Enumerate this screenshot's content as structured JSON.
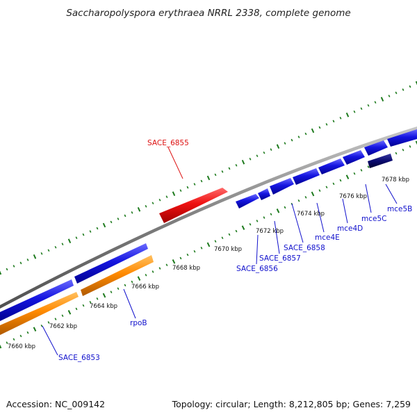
{
  "title": "Saccharopolyspora erythraea NRRL 2338, complete genome",
  "footer": {
    "accession": "Accession: NC_009142",
    "summary": "Topology: circular; Length: 8,212,805 bp; Genes: 7,259"
  },
  "colors": {
    "backbone": "#808080",
    "tick": "#1d7a1d",
    "label_blue": "#1010cc",
    "label_red": "#dd1111",
    "feature_red": "#ee1111",
    "feature_blue": "#1515e0",
    "feature_orange": "#ff8a00",
    "feature_navy": "#0a0a70"
  },
  "tick_labels": [
    "7660 kbp",
    "7662 kbp",
    "7664 kbp",
    "7666 kbp",
    "7668 kbp",
    "7670 kbp",
    "7672 kbp",
    "7674 kbp",
    "7676 kbp",
    "7678 kbp"
  ],
  "genes": [
    {
      "name": "SACE_6853",
      "color": "label_blue"
    },
    {
      "name": "rpoB",
      "color": "label_blue"
    },
    {
      "name": "SACE_6855",
      "color": "label_red"
    },
    {
      "name": "SACE_6856",
      "color": "label_blue"
    },
    {
      "name": "SACE_6857",
      "color": "label_blue"
    },
    {
      "name": "SACE_6858",
      "color": "label_blue"
    },
    {
      "name": "mce4E",
      "color": "label_blue"
    },
    {
      "name": "mce4D",
      "color": "label_blue"
    },
    {
      "name": "mce5C",
      "color": "label_blue"
    },
    {
      "name": "mce5B",
      "color": "label_blue"
    }
  ]
}
